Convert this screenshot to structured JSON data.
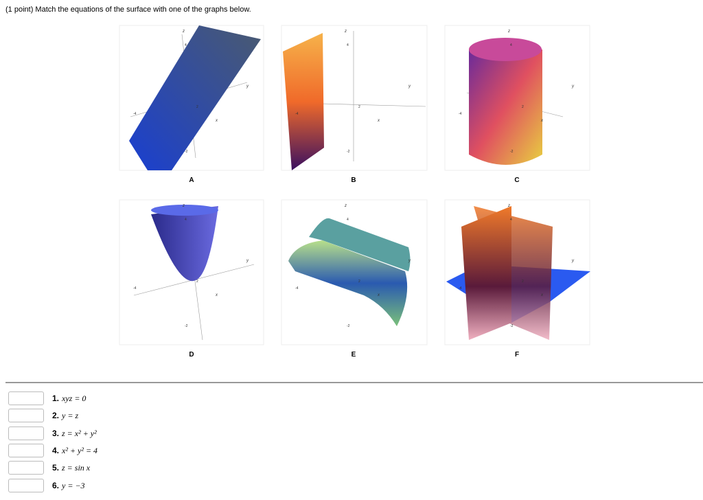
{
  "header": {
    "title": "(1 point) Match the equations of the surface with one of the graphs below."
  },
  "graphs": [
    {
      "label": "A",
      "axis_labels": [
        "z",
        "y",
        "x"
      ],
      "ticks": [
        "4",
        "-4",
        "2",
        "-2"
      ]
    },
    {
      "label": "B",
      "axis_labels": [
        "z",
        "y",
        "x"
      ],
      "ticks": [
        "4",
        "-4",
        "2",
        "-2"
      ]
    },
    {
      "label": "C",
      "axis_labels": [
        "z",
        "y",
        "x"
      ],
      "ticks": [
        "4",
        "-4",
        "2",
        "-2"
      ]
    },
    {
      "label": "D",
      "axis_labels": [
        "z",
        "y",
        "x"
      ],
      "ticks": [
        "4",
        "-4",
        "2",
        "-2"
      ]
    },
    {
      "label": "E",
      "axis_labels": [
        "z",
        "y",
        "x"
      ],
      "ticks": [
        "4",
        "-4",
        "2",
        "-2"
      ]
    },
    {
      "label": "F",
      "axis_labels": [
        "z",
        "y",
        "x"
      ],
      "ticks": [
        "4",
        "-4",
        "2",
        "-2"
      ]
    }
  ],
  "equations": [
    {
      "number": "1.",
      "equation": "xyz = 0"
    },
    {
      "number": "2.",
      "equation": "y = z"
    },
    {
      "number": "3.",
      "equation": "z = x² + y²"
    },
    {
      "number": "4.",
      "equation": "x² + y² = 4"
    },
    {
      "number": "5.",
      "equation": "z = sin x"
    },
    {
      "number": "6.",
      "equation": "y = −3"
    }
  ]
}
